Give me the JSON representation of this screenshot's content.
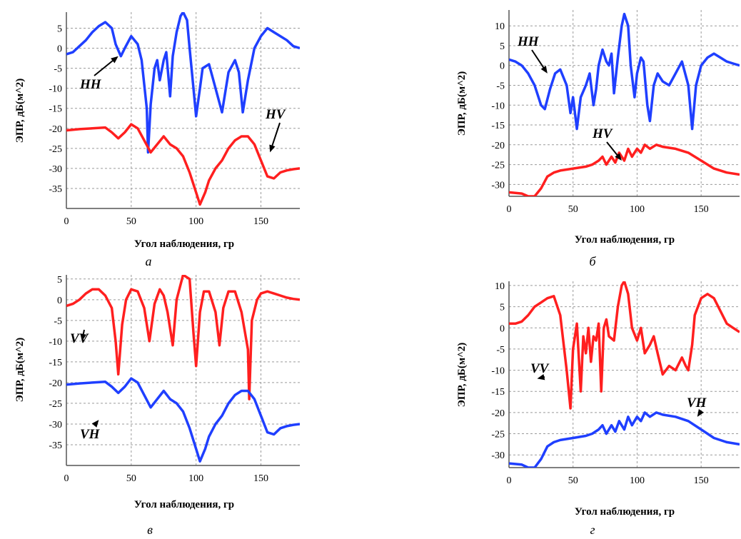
{
  "chart_data": [
    {
      "type": "line",
      "caption": "а",
      "xlabel": "Угол наблюдения, гр",
      "ylabel": "ЭПР, дБ(м^2)",
      "xlim": [
        0,
        180
      ],
      "ylim": [
        -40,
        9
      ],
      "xticks": [
        0,
        50,
        100,
        150
      ],
      "yticks": [
        5,
        0,
        -5,
        -10,
        -15,
        -20,
        -25,
        -30,
        -35
      ],
      "grid": true,
      "series": [
        {
          "name": "HH",
          "color": "#1f3fff",
          "x": [
            0,
            5,
            10,
            15,
            20,
            25,
            30,
            35,
            38,
            42,
            45,
            50,
            55,
            58,
            62,
            63,
            65,
            68,
            70,
            72,
            75,
            77,
            80,
            82,
            85,
            88,
            90,
            93,
            95,
            98,
            100,
            103,
            105,
            110,
            115,
            120,
            125,
            130,
            133,
            136,
            140,
            145,
            150,
            155,
            160,
            165,
            170,
            175,
            180
          ],
          "y": [
            -1.5,
            -1,
            0.5,
            2,
            4,
            5.5,
            6.5,
            5,
            1,
            -2,
            0,
            3,
            1,
            -3,
            -15,
            -26,
            -14,
            -5,
            -3,
            -8,
            -3,
            -1,
            -12,
            -2,
            4,
            8,
            9,
            7,
            0,
            -10,
            -17,
            -10,
            -5,
            -4,
            -10,
            -16,
            -6,
            -3,
            -6,
            -16,
            -8,
            0,
            3,
            5,
            4,
            3,
            2,
            0.5,
            0
          ]
        },
        {
          "name": "HV",
          "color": "#ff1f1f",
          "x": [
            0,
            10,
            20,
            30,
            35,
            40,
            45,
            50,
            55,
            60,
            65,
            70,
            75,
            80,
            85,
            90,
            95,
            100,
            103,
            107,
            110,
            115,
            120,
            125,
            130,
            135,
            140,
            145,
            150,
            155,
            160,
            165,
            170,
            175,
            180
          ],
          "y": [
            -20.5,
            -20.2,
            -20,
            -19.8,
            -21,
            -22.5,
            -21,
            -19,
            -20,
            -23,
            -26,
            -24,
            -22,
            -24,
            -25,
            -27,
            -31,
            -36,
            -39,
            -36,
            -33,
            -30,
            -28,
            -25,
            -23,
            -22,
            -22,
            -24,
            -28,
            -32,
            -32.5,
            -31,
            -30.5,
            -30.2,
            -30
          ]
        }
      ],
      "annotations": [
        {
          "text": "HH",
          "x": 40,
          "y": -2
        },
        {
          "text": "HV",
          "x": 157,
          "y": -26
        }
      ]
    },
    {
      "type": "line",
      "caption": "б",
      "xlabel": "Угол наблюдения, гр",
      "ylabel": "ЭПР, дБ(м^2)",
      "xlim": [
        0,
        180
      ],
      "ylim": [
        -33,
        14
      ],
      "xticks": [
        0,
        50,
        100,
        150
      ],
      "yticks": [
        10,
        5,
        0,
        -5,
        -10,
        -15,
        -20,
        -25,
        -30
      ],
      "grid": true,
      "series": [
        {
          "name": "HH",
          "color": "#1f3fff",
          "x": [
            0,
            5,
            10,
            15,
            20,
            25,
            28,
            32,
            36,
            40,
            45,
            48,
            50,
            53,
            56,
            60,
            63,
            66,
            68,
            70,
            73,
            76,
            78,
            80,
            82,
            85,
            88,
            90,
            93,
            95,
            98,
            100,
            103,
            105,
            108,
            110,
            113,
            116,
            120,
            125,
            130,
            135,
            140,
            143,
            146,
            150,
            155,
            160,
            165,
            170,
            175,
            180
          ],
          "y": [
            1.5,
            1,
            0,
            -2,
            -5,
            -10,
            -11,
            -6,
            -2,
            -1,
            -5,
            -12,
            -8,
            -16,
            -8,
            -5,
            -2,
            -10,
            -6,
            0,
            4,
            1,
            0,
            3,
            -7,
            2,
            10,
            13,
            10,
            0,
            -8,
            -2,
            2,
            1,
            -10,
            -14,
            -5,
            -2,
            -4,
            -5,
            -2,
            1,
            -5,
            -16,
            -5,
            0,
            2,
            3,
            2,
            1,
            0.5,
            0
          ]
        },
        {
          "name": "HV",
          "color": "#ff1f1f",
          "x": [
            0,
            10,
            15,
            20,
            25,
            30,
            35,
            40,
            50,
            60,
            65,
            70,
            73,
            76,
            80,
            83,
            86,
            90,
            93,
            96,
            100,
            103,
            106,
            110,
            115,
            120,
            130,
            140,
            150,
            160,
            170,
            180
          ],
          "y": [
            -32,
            -32.3,
            -33,
            -33,
            -31,
            -28,
            -27,
            -26.5,
            -26,
            -25.5,
            -25,
            -24,
            -23,
            -25,
            -23,
            -24.5,
            -22,
            -24,
            -21,
            -23,
            -21,
            -22,
            -20,
            -21,
            -20,
            -20.5,
            -21,
            -22,
            -24,
            -26,
            -27,
            -27.5
          ]
        }
      ],
      "annotations": [
        {
          "text": "HH",
          "x": 30,
          "y": -2
        },
        {
          "text": "HV",
          "x": 88,
          "y": -24
        }
      ]
    },
    {
      "type": "line",
      "caption": "в",
      "xlabel": "Угол наблюдения, гр",
      "ylabel": "ЭПР, дБ(м^2)",
      "xlim": [
        0,
        180
      ],
      "ylim": [
        -40,
        6
      ],
      "xticks": [
        0,
        50,
        100,
        150
      ],
      "yticks": [
        5,
        0,
        -5,
        -10,
        -15,
        -20,
        -25,
        -30,
        -35
      ],
      "grid": true,
      "series": [
        {
          "name": "VV",
          "color": "#ff1f1f",
          "x": [
            0,
            5,
            10,
            15,
            20,
            25,
            30,
            35,
            38,
            40,
            43,
            46,
            50,
            55,
            60,
            64,
            68,
            72,
            75,
            78,
            82,
            85,
            90,
            95,
            98,
            100,
            103,
            106,
            110,
            115,
            118,
            121,
            125,
            130,
            135,
            140,
            141,
            143,
            147,
            150,
            155,
            160,
            165,
            170,
            175,
            180
          ],
          "y": [
            -1.5,
            -1,
            0,
            1.5,
            2.5,
            2.5,
            1,
            -2,
            -10,
            -18,
            -6,
            0,
            2.5,
            2,
            -2,
            -10,
            -1,
            2.5,
            1,
            -3,
            -11,
            0,
            6,
            5,
            -8,
            -16,
            -3,
            2,
            2,
            -3,
            -11,
            -2,
            2,
            2,
            -3,
            -12,
            -24,
            -5,
            0,
            1.5,
            2,
            1.5,
            1,
            0.5,
            0.2,
            0
          ]
        },
        {
          "name": "VH",
          "color": "#1f3fff",
          "x": [
            0,
            10,
            20,
            30,
            35,
            40,
            45,
            50,
            55,
            60,
            65,
            70,
            75,
            80,
            85,
            90,
            95,
            100,
            103,
            107,
            110,
            115,
            120,
            125,
            130,
            135,
            140,
            145,
            150,
            155,
            160,
            165,
            170,
            175,
            180
          ],
          "y": [
            -20.5,
            -20.2,
            -20,
            -19.8,
            -21,
            -22.5,
            -21,
            -19,
            -20,
            -23,
            -26,
            -24,
            -22,
            -24,
            -25,
            -27,
            -31,
            -36,
            -39,
            -36,
            -33,
            -30,
            -28,
            -25,
            -23,
            -22,
            -22,
            -24,
            -28,
            -32,
            -32.5,
            -31,
            -30.5,
            -30.2,
            -30
          ]
        }
      ],
      "annotations": [
        {
          "text": "VV",
          "x": 12,
          "y": -10
        },
        {
          "text": "VH",
          "x": 25,
          "y": -29
        }
      ]
    },
    {
      "type": "line",
      "caption": "г",
      "xlabel": "Угол наблюдения, гр",
      "ylabel": "ЭПР, дБ(м^2)",
      "xlim": [
        0,
        180
      ],
      "ylim": [
        -33,
        11
      ],
      "xticks": [
        0,
        50,
        100,
        150
      ],
      "yticks": [
        10,
        5,
        0,
        -5,
        -10,
        -15,
        -20,
        -25,
        -30
      ],
      "grid": true,
      "series": [
        {
          "name": "VV",
          "color": "#ff1f1f",
          "x": [
            0,
            5,
            10,
            15,
            20,
            25,
            30,
            35,
            40,
            45,
            48,
            50,
            53,
            56,
            58,
            60,
            62,
            64,
            66,
            68,
            70,
            72,
            74,
            76,
            78,
            82,
            85,
            88,
            90,
            93,
            96,
            100,
            103,
            106,
            110,
            113,
            116,
            120,
            125,
            130,
            135,
            138,
            140,
            143,
            145,
            150,
            155,
            160,
            165,
            170,
            175,
            180
          ],
          "y": [
            1,
            1,
            1.5,
            3,
            5,
            6,
            7,
            7.5,
            3,
            -10,
            -19,
            -5,
            1,
            -15,
            -2,
            -6,
            0,
            -8,
            -2,
            -3,
            1,
            -15,
            0,
            2,
            -2,
            -3,
            5,
            10,
            11,
            8,
            0,
            -3,
            0,
            -6,
            -4,
            -2,
            -6,
            -11,
            -9,
            -10,
            -7,
            -9,
            -10,
            -4,
            3,
            7,
            8,
            7,
            4,
            1,
            0,
            -1
          ]
        },
        {
          "name": "VH",
          "color": "#1f3fff",
          "x": [
            0,
            10,
            15,
            20,
            25,
            30,
            35,
            40,
            50,
            60,
            65,
            70,
            73,
            76,
            80,
            83,
            86,
            90,
            93,
            96,
            100,
            103,
            106,
            110,
            115,
            120,
            130,
            140,
            150,
            160,
            170,
            180
          ],
          "y": [
            -32,
            -32.3,
            -33,
            -33,
            -31,
            -28,
            -27,
            -26.5,
            -26,
            -25.5,
            -25,
            -24,
            -23,
            -25,
            -23,
            -24.5,
            -22,
            -24,
            -21,
            -23,
            -21,
            -22,
            -20,
            -21,
            -20,
            -20.5,
            -21,
            -22,
            -24,
            -26,
            -27,
            -27.5
          ]
        }
      ],
      "annotations": [
        {
          "text": "VV",
          "x": 22,
          "y": -12
        },
        {
          "text": "VH",
          "x": 147,
          "y": -21
        }
      ]
    }
  ]
}
